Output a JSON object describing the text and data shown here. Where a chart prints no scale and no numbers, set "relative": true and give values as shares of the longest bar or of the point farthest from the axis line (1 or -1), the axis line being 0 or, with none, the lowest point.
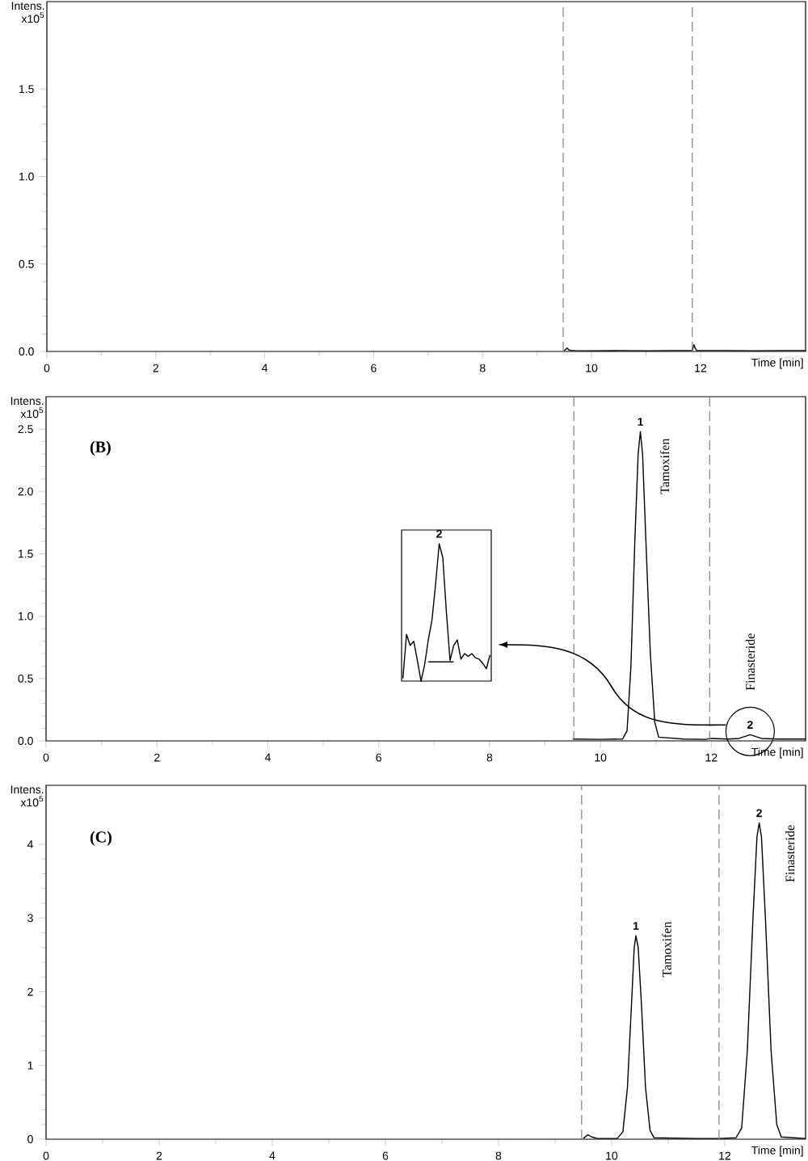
{
  "chart_data": [
    {
      "type": "line",
      "xlabel": "Time [min]",
      "ylabel": "Intens. x10$^{5}$",
      "color": "#000000",
      "x": [
        9.5,
        9.55,
        9.58,
        9.62,
        9.7,
        10,
        10.5,
        11,
        11.5,
        11.85,
        11.88,
        11.9,
        11.93,
        11.97,
        12.5,
        13,
        13.5,
        13.93
      ],
      "values": [
        0.005,
        0.02,
        0.01,
        0.006,
        0.005,
        0.004,
        0.005,
        0.004,
        0.005,
        0.005,
        0.04,
        0.02,
        0.006,
        0.005,
        0.005,
        0.004,
        0.005,
        0.005
      ],
      "xlim": [
        0,
        13.93
      ],
      "ylim": [
        0,
        2.0
      ],
      "xticks": [
        0,
        2,
        4,
        6,
        8,
        10,
        12
      ],
      "yticks": [
        {
          "value": 0,
          "label": "0.0"
        },
        {
          "value": 0.5,
          "label": "0.5"
        },
        {
          "value": 1.0,
          "label": "1.0"
        },
        {
          "value": 1.5,
          "label": "1.5"
        }
      ],
      "ref_lines": [
        {
          "axis": "x",
          "value": 9.48,
          "color": "#808080",
          "line_style": "dashed"
        },
        {
          "axis": "x",
          "value": 11.85,
          "color": "#808080",
          "line_style": "dashed"
        }
      ]
    },
    {
      "type": "line",
      "title": "(B)",
      "xlabel": "Time [min]",
      "ylabel": "Intens. x10$^{5}$",
      "color": "#000000",
      "x": [
        9.5,
        10,
        10.4,
        10.48,
        10.55,
        10.62,
        10.68,
        10.72,
        10.76,
        10.82,
        10.9,
        10.98,
        11.05,
        11.5,
        11.9,
        12.0,
        12.3,
        12.5,
        12.6,
        12.7,
        12.8,
        12.9,
        13.2,
        13.7
      ],
      "values": [
        0.015,
        0.012,
        0.015,
        0.08,
        0.6,
        1.6,
        2.3,
        2.48,
        2.3,
        1.6,
        0.7,
        0.15,
        0.03,
        0.015,
        0.012,
        0.02,
        0.015,
        0.02,
        0.035,
        0.05,
        0.035,
        0.02,
        0.015,
        0.015
      ],
      "xlim": [
        0,
        13.7
      ],
      "ylim": [
        0,
        2.76
      ],
      "xticks": [
        0,
        2,
        4,
        6,
        8,
        10,
        12
      ],
      "yticks": [
        {
          "value": 0,
          "label": "0.0"
        },
        {
          "value": 0.5,
          "label": "0.5"
        },
        {
          "value": 1.0,
          "label": "1.0"
        },
        {
          "value": 1.5,
          "label": "1.5"
        },
        {
          "value": 2.0,
          "label": "2.0"
        },
        {
          "value": 2.5,
          "label": "2.5"
        }
      ],
      "ref_lines": [
        {
          "axis": "x",
          "value": 9.52,
          "color": "#808080",
          "line_style": "dashed"
        },
        {
          "axis": "x",
          "value": 11.97,
          "color": "#808080",
          "line_style": "dashed"
        }
      ],
      "annotations": [
        {
          "text": "1",
          "x": 10.72,
          "y": 2.48
        },
        "Tamoxifen",
        {
          "text": "2",
          "x": 12.7,
          "y": 0.05
        },
        "Finasteride"
      ]
    },
    {
      "type": "line",
      "relative": true,
      "categories": [
        null,
        null,
        null,
        null,
        null,
        null,
        null,
        null,
        null,
        null,
        null,
        null,
        null,
        null,
        null,
        null,
        null,
        null,
        null,
        null,
        null,
        null,
        null,
        null,
        null
      ],
      "series": [
        {
          "color": "#000000",
          "values": [
            0.02,
            0.34,
            0.26,
            0.29,
            0.15,
            0.0,
            0.12,
            0.3,
            0.44,
            0.7,
            1.0,
            0.9,
            0.5,
            0.15,
            0.26,
            0.3,
            0.16,
            0.2,
            0.18,
            0.2,
            0.17,
            0.16,
            0.13,
            0.09,
            0.19
          ]
        },
        {
          "color": "#000000",
          "values": [
            null,
            null,
            null,
            null,
            null,
            null,
            null,
            0.14,
            0.14,
            0.14,
            0.14,
            0.14,
            0.14,
            0.14,
            0.14,
            null,
            null,
            null,
            null,
            null,
            null,
            null,
            null,
            null,
            null
          ]
        }
      ],
      "annotations": [
        "2"
      ]
    },
    {
      "type": "line",
      "title": "(C)",
      "xlabel": "Time [min]",
      "ylabel": "Intens. x10$^{5}$",
      "color": "#000000",
      "x": [
        9.5,
        9.58,
        9.65,
        9.75,
        10.1,
        10.2,
        10.28,
        10.35,
        10.4,
        10.43,
        10.47,
        10.53,
        10.6,
        10.68,
        10.75,
        11.5,
        11.9,
        12.2,
        12.3,
        12.4,
        12.5,
        12.57,
        12.61,
        12.65,
        12.72,
        12.82,
        12.92,
        13.0,
        13.43
      ],
      "values": [
        0.01,
        0.06,
        0.03,
        0.01,
        0.01,
        0.1,
        0.7,
        1.8,
        2.6,
        2.76,
        2.6,
        1.8,
        0.7,
        0.12,
        0.02,
        0.01,
        0.01,
        0.02,
        0.15,
        1.2,
        3.0,
        4.1,
        4.29,
        4.1,
        3.0,
        1.2,
        0.2,
        0.03,
        0.01
      ],
      "xlim": [
        0,
        13.43
      ],
      "ylim": [
        0,
        4.8
      ],
      "xticks": [
        0,
        2,
        4,
        6,
        8,
        10,
        12
      ],
      "yticks": [
        0,
        1,
        2,
        3,
        4
      ],
      "ref_lines": [
        {
          "axis": "x",
          "value": 9.47,
          "color": "#808080",
          "line_style": "dashed"
        },
        {
          "axis": "x",
          "value": 11.9,
          "color": "#808080",
          "line_style": "dashed"
        }
      ],
      "annotations": [
        {
          "text": "1",
          "x": 10.43,
          "y": 2.76
        },
        "Tamoxifen",
        {
          "text": "2",
          "x": 12.61,
          "y": 4.29
        },
        "Finasteride"
      ]
    }
  ]
}
